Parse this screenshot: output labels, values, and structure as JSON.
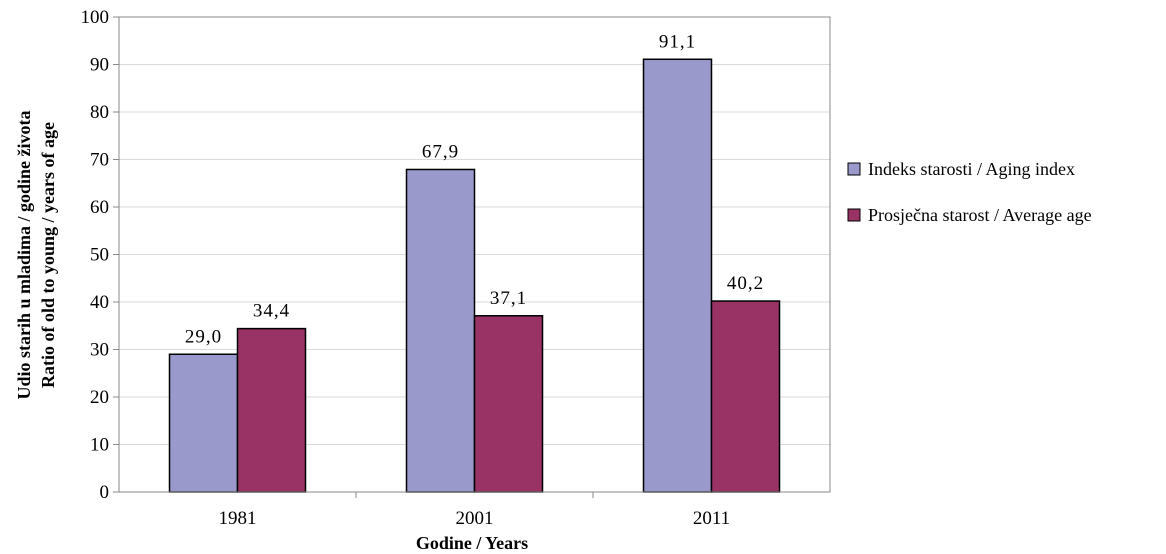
{
  "chart_data": {
    "type": "bar",
    "categories": [
      "1981",
      "2001",
      "2011"
    ],
    "series": [
      {
        "name": "Indeks starosti / Aging index",
        "values": [
          29.0,
          67.9,
          91.1
        ],
        "labels": [
          "29,0",
          "67,9",
          "91,1"
        ],
        "color": "#9999cc"
      },
      {
        "name": "Prosječna starost / Average age",
        "values": [
          34.4,
          37.1,
          40.2
        ],
        "labels": [
          "34,4",
          "37,1",
          "40,2"
        ],
        "color": "#993366"
      }
    ],
    "title": "",
    "xlabel": "Godine / Years",
    "ylabel": [
      "Udio starih u mladima / godine života",
      "Ratio of old to  young  / years of age"
    ],
    "ylim": [
      0,
      100
    ],
    "yticks": [
      0,
      10,
      20,
      30,
      40,
      50,
      60,
      70,
      80,
      90,
      100
    ],
    "grid": true,
    "legend_position": "right"
  }
}
